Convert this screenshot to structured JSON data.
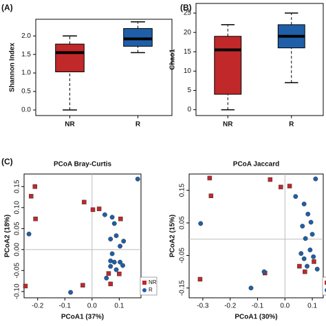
{
  "chart_data": [
    {
      "type": "box",
      "panel_label": "(A)",
      "ylabel": "Shannon Index",
      "categories": [
        "NR",
        "R"
      ],
      "boxes": [
        {
          "min": 0.0,
          "q1": 1.03,
          "median": 1.55,
          "q3": 1.78,
          "max": 2.0,
          "color": "#c0282a"
        },
        {
          "min": 1.55,
          "q1": 1.72,
          "median": 1.92,
          "q3": 2.2,
          "max": 2.38,
          "color": "#1f5fa8"
        }
      ],
      "ylim": [
        -0.15,
        2.45
      ],
      "yticks": [
        {
          "value": 0,
          "label": "0.0"
        },
        {
          "value": 0.5,
          "label": "0.5"
        },
        {
          "value": 1,
          "label": "1.0"
        },
        {
          "value": 1.5,
          "label": "1.5"
        },
        {
          "value": 2,
          "label": "2.0"
        }
      ]
    },
    {
      "type": "box",
      "panel_label": "(B)",
      "ylabel": "Chao1",
      "categories": [
        "NR",
        "R"
      ],
      "boxes": [
        {
          "min": 0,
          "q1": 4,
          "median": 15.5,
          "q3": 19,
          "max": 22,
          "color": "#c0282a"
        },
        {
          "min": 7,
          "q1": 16,
          "median": 19,
          "q3": 22,
          "max": 25,
          "color": "#1f5fa8"
        }
      ],
      "ylim": [
        -1.5,
        27.5
      ],
      "yticks": [
        0,
        5,
        10,
        15,
        20,
        25
      ]
    },
    {
      "type": "scatter",
      "panel_label": "(C)",
      "title": "PCoA Bray-Curtis",
      "xlabel": "PCoA1 (37%)",
      "ylabel": "PCoA2 (18%)",
      "zero_lines": true,
      "legend": "bottom-right",
      "series": [
        {
          "name": "NR",
          "color": "#c0282a",
          "marker": "square",
          "x": [
            -0.21,
            -0.224,
            -0.208,
            -0.029,
            0.003,
            0.026,
            0.105,
            -0.245,
            -0.034,
            0.061,
            0.068,
            0.1
          ],
          "values": [
            0.15,
            0.127,
            0.073,
            0.113,
            0.095,
            0.097,
            0.073,
            -0.087,
            -0.085,
            -0.057,
            -0.082,
            -0.058
          ]
        },
        {
          "name": "R",
          "color": "#1f5fa8",
          "marker": "circle",
          "x": [
            0.168,
            -0.232,
            -0.079,
            0.047,
            0.074,
            0.082,
            0.068,
            0.089,
            0.116,
            0.103,
            0.074,
            0.082,
            0.068,
            0.103,
            0.089,
            0.053,
            0.068,
            0.113
          ],
          "values": [
            0.168,
            0.037,
            -0.102,
            0.083,
            0.077,
            0.062,
            0.025,
            0.033,
            0.02,
            0.008,
            -0.01,
            -0.03,
            -0.04,
            -0.03,
            -0.048,
            -0.068,
            -0.027,
            -0.038
          ]
        }
      ],
      "xlim": [
        -0.25,
        0.18
      ],
      "ylim": [
        -0.115,
        0.18
      ],
      "xticks": [
        -0.2,
        -0.1,
        {
          "value": 0,
          "label": "0.0"
        },
        0.1
      ],
      "yticks": [
        {
          "value": -0.1,
          "label": "-0.10"
        },
        -0.05,
        {
          "value": 0,
          "label": "0.00"
        },
        0.05,
        {
          "value": 0.1,
          "label": "0.10"
        },
        0.15
      ]
    },
    {
      "type": "scatter",
      "title": "PCoA Jaccard",
      "xlabel": "PCoA1 (30%)",
      "ylabel": "PCoA2 (15%)",
      "zero_lines": true,
      "legend": "bottom-right",
      "series": [
        {
          "name": "NR",
          "color": "#c0282a",
          "marker": "square",
          "x": [
            -0.275,
            -0.27,
            -0.31,
            -0.054,
            -0.015,
            0.017,
            -0.073,
            0.053,
            0.073,
            0.106
          ],
          "values": [
            0.1875,
            0.133,
            -0.123,
            0.183,
            0.16,
            0.163,
            -0.104,
            -0.083,
            -0.1,
            -0.069
          ]
        },
        {
          "name": "R",
          "color": "#1f5fa8",
          "marker": "circle",
          "x": [
            0.112,
            -0.308,
            -0.124,
            -0.076,
            0.039,
            0.07,
            0.084,
            0.095,
            0.064,
            0.1,
            0.075,
            0.059,
            0.092,
            0.07,
            0.104,
            0.081,
            0.118
          ],
          "values": [
            0.185,
            0.048,
            -0.15,
            -0.1,
            0.131,
            0.108,
            0.077,
            0.052,
            0.04,
            0.015,
            0.002,
            -0.044,
            -0.033,
            -0.06,
            -0.054,
            -0.083,
            -0.092
          ]
        }
      ],
      "xlim": [
        -0.35,
        0.14
      ],
      "ylim": [
        -0.18,
        0.2
      ],
      "xticks": [
        -0.3,
        -0.2,
        -0.1,
        {
          "value": 0,
          "label": "0.0"
        },
        0.1
      ],
      "yticks": [
        -0.15,
        -0.05,
        0.05,
        0.15
      ]
    }
  ]
}
